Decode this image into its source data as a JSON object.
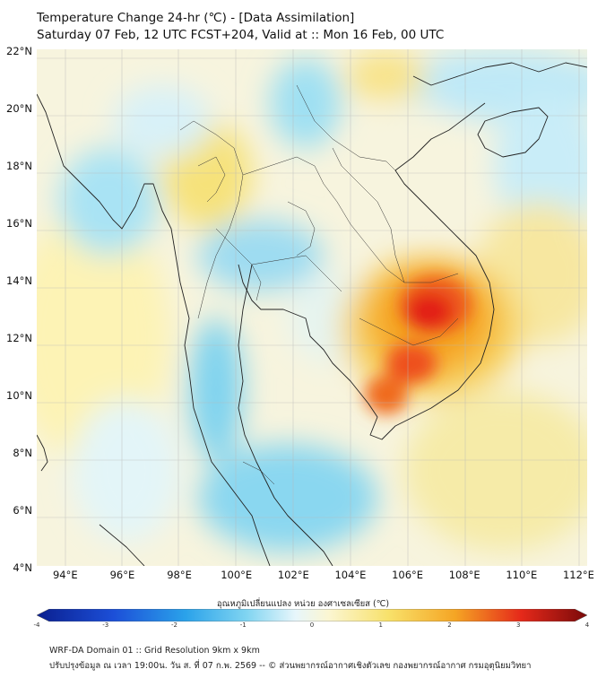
{
  "header": {
    "title": "Temperature Change 24-hr (℃) - [Data Assimilation]",
    "subtitle": "Saturday 07 Feb, 12 UTC FCST+204, Valid at :: Mon 16 Feb, 00 UTC"
  },
  "map": {
    "lat_labels": [
      "22°N",
      "20°N",
      "18°N",
      "16°N",
      "14°N",
      "12°N",
      "10°N",
      "8°N",
      "6°N",
      "4°N"
    ],
    "lon_labels": [
      "94°E",
      "96°E",
      "98°E",
      "100°E",
      "102°E",
      "104°E",
      "106°E",
      "108°E",
      "110°E",
      "112°E"
    ],
    "lat_range": [
      4,
      22
    ],
    "lon_range": [
      93,
      112.3
    ],
    "grid": true,
    "colors": {
      "warm_core": "#e8201a",
      "warm": "#f59a1c",
      "mild": "#f8e16a",
      "cool": "#8fd9f0",
      "cold": "#3bbfe8"
    }
  },
  "colorbar": {
    "label": "อุณหภูมิเปลี่ยนแปลง หน่วย องศาเซลเซียส (℃)",
    "ticks": [
      "-4",
      "-3",
      "-2",
      "-1",
      "0",
      "1",
      "2",
      "3",
      "4"
    ],
    "range": [
      -4,
      4
    ]
  },
  "footer": {
    "line1": "WRF-DA Domain 01 :: Grid Resolution 9km x 9km",
    "line2": "ปรับปรุงข้อมูล ณ เวลา 19:00น. วัน ส. ที่ 07 ก.พ. 2569 -- © ส่วนพยากรณ์อากาศเชิงตัวเลข กองพยากรณ์อากาศ กรมอุตุนิยมวิทยา"
  }
}
